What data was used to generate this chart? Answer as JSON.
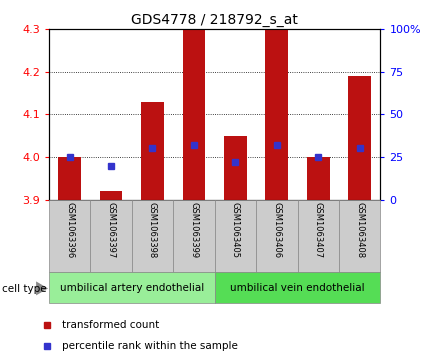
{
  "title": "GDS4778 / 218792_s_at",
  "samples": [
    "GSM1063396",
    "GSM1063397",
    "GSM1063398",
    "GSM1063399",
    "GSM1063405",
    "GSM1063406",
    "GSM1063407",
    "GSM1063408"
  ],
  "transformed_counts": [
    4.0,
    3.92,
    4.13,
    4.3,
    4.05,
    4.3,
    4.0,
    4.19
  ],
  "percentile_ranks": [
    25,
    20,
    30,
    32,
    22,
    32,
    25,
    30
  ],
  "bar_bottom": 3.9,
  "ylim_left": [
    3.9,
    4.3
  ],
  "ylim_right": [
    0,
    100
  ],
  "left_yticks": [
    3.9,
    4.0,
    4.1,
    4.2,
    4.3
  ],
  "right_yticks": [
    0,
    25,
    50,
    75,
    100
  ],
  "right_yticklabels": [
    "0",
    "25",
    "50",
    "75",
    "100%"
  ],
  "bar_color": "#BB1111",
  "dot_color": "#3333CC",
  "cell_type_groups": [
    {
      "label": "umbilical artery endothelial",
      "indices": [
        0,
        1,
        2,
        3
      ],
      "color": "#99EE99"
    },
    {
      "label": "umbilical vein endothelial",
      "indices": [
        4,
        5,
        6,
        7
      ],
      "color": "#55DD55"
    }
  ],
  "legend_items": [
    {
      "label": "transformed count",
      "color": "#BB1111"
    },
    {
      "label": "percentile rank within the sample",
      "color": "#3333CC"
    }
  ],
  "cell_type_label": "cell type",
  "sample_box_color": "#CCCCCC",
  "sample_box_edge": "#888888"
}
